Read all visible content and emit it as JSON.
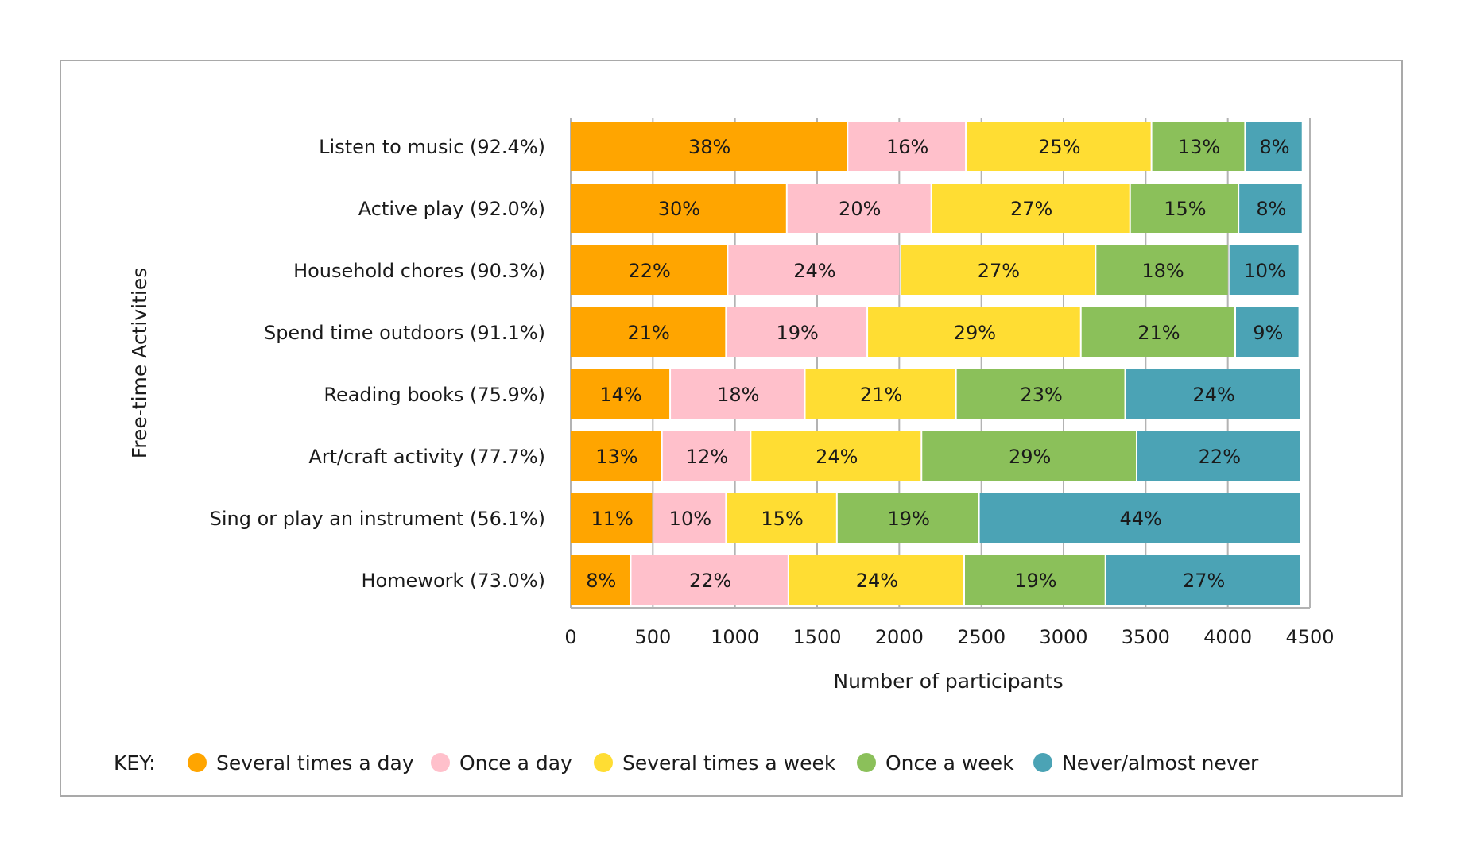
{
  "chart_data": {
    "type": "bar",
    "orientation": "horizontal",
    "stacked": true,
    "xlabel": "Number of participants",
    "ylabel": "Free-time Activities",
    "xlim": [
      0,
      4500
    ],
    "xticks": [
      "0",
      "500",
      "1000",
      "1500",
      "2000",
      "2500",
      "3000",
      "3500",
      "4000",
      "4500"
    ],
    "grid": true,
    "legend_title": "KEY:",
    "legend_position": "bottom",
    "categories": [
      "Listen to music (92.4%)",
      "Active play (92.0%)",
      "Household chores  (90.3%)",
      "Spend time outdoors (91.1%)",
      "Reading books (75.9%)",
      "Art/craft activity (77.7%)",
      "Sing or play an instrument (56.1%)",
      "Homework (73.0%)"
    ],
    "series": [
      {
        "name": "Several times a day",
        "color": "#FFA500",
        "values": [
          1690,
          1320,
          960,
          950,
          610,
          560,
          505,
          370
        ],
        "labels": [
          "38%",
          "30%",
          "22%",
          "21%",
          "14%",
          "13%",
          "11%",
          "8%"
        ]
      },
      {
        "name": "Once a day",
        "color": "#FFC0CB",
        "values": [
          720,
          880,
          1050,
          860,
          820,
          540,
          445,
          960
        ],
        "labels": [
          "16%",
          "20%",
          "24%",
          "19%",
          "18%",
          "12%",
          "10%",
          "22%"
        ]
      },
      {
        "name": "Several times a week",
        "color": "#FFDD33",
        "values": [
          1130,
          1210,
          1190,
          1300,
          920,
          1040,
          675,
          1070
        ],
        "labels": [
          "25%",
          "27%",
          "27%",
          "29%",
          "21%",
          "24%",
          "15%",
          "24%"
        ]
      },
      {
        "name": "Once a week",
        "color": "#8BC05A",
        "values": [
          570,
          660,
          810,
          940,
          1030,
          1310,
          865,
          860
        ],
        "labels": [
          "13%",
          "15%",
          "18%",
          "21%",
          "23%",
          "29%",
          "19%",
          "19%"
        ]
      },
      {
        "name": "Never/almost never",
        "color": "#4BA3B5",
        "values": [
          350,
          390,
          430,
          390,
          1070,
          1000,
          1960,
          1190
        ],
        "labels": [
          "8%",
          "8%",
          "10%",
          "9%",
          "24%",
          "22%",
          "44%",
          "27%"
        ]
      }
    ]
  }
}
